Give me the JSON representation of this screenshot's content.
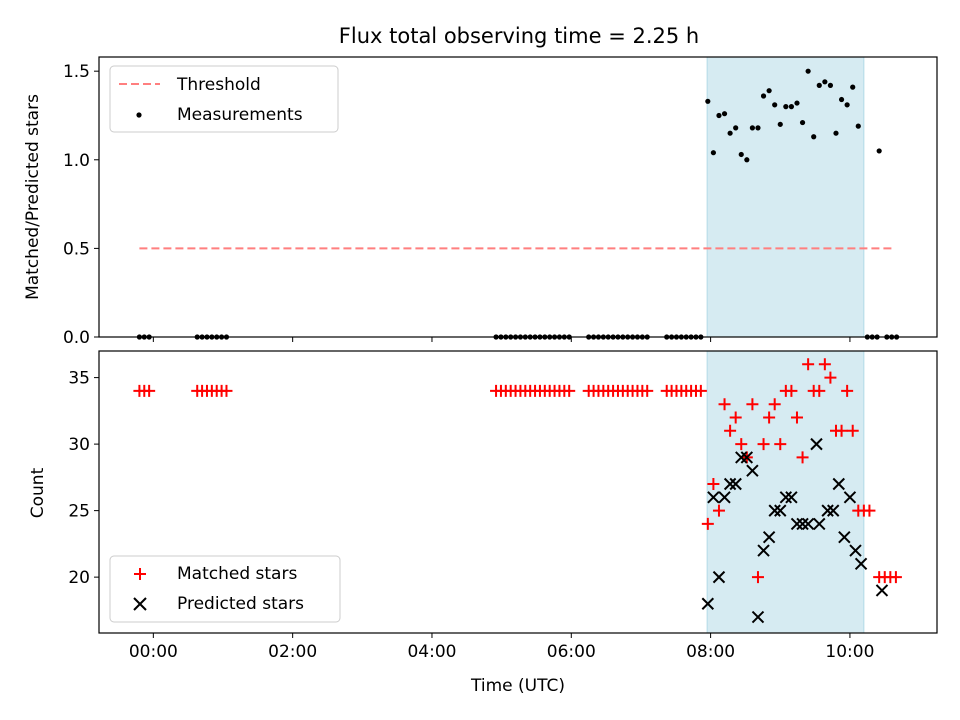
{
  "chart_data": {
    "type": "scatter",
    "title": "Flux total observing time = 2.25 h",
    "xlabel": "Time (UTC)",
    "x_ticks": [
      "00:00",
      "02:00",
      "04:00",
      "06:00",
      "08:00",
      "10:00"
    ],
    "x_tick_hours": [
      0,
      2,
      4,
      6,
      8,
      10
    ],
    "xlim_hours": [
      -0.78,
      11.25
    ],
    "shaded_interval_hours": [
      7.95,
      10.2
    ],
    "shade_color": "#add8e6",
    "panels": [
      {
        "ylabel": "Matched/Predicted stars",
        "ylim": [
          0,
          1.58
        ],
        "yticks": [
          0.0,
          0.5,
          1.0,
          1.5
        ],
        "ytick_labels": [
          "0.0",
          "0.5",
          "1.0",
          "1.5"
        ],
        "legend_position": "upper left",
        "threshold": {
          "name": "Threshold",
          "value": 0.5,
          "x_range_hours": [
            -0.2,
            10.65
          ],
          "color": "#ff7f7f"
        },
        "series": [
          {
            "name": "Measurements",
            "marker": "dot",
            "color": "#000000",
            "points": [
              [
                -0.2,
                0
              ],
              [
                -0.13,
                0
              ],
              [
                -0.06,
                0
              ],
              [
                0.63,
                0
              ],
              [
                0.7,
                0
              ],
              [
                0.77,
                0
              ],
              [
                0.84,
                0
              ],
              [
                0.91,
                0
              ],
              [
                0.98,
                0
              ],
              [
                1.05,
                0
              ],
              [
                4.92,
                0
              ],
              [
                4.99,
                0
              ],
              [
                5.06,
                0
              ],
              [
                5.13,
                0
              ],
              [
                5.2,
                0
              ],
              [
                5.27,
                0
              ],
              [
                5.34,
                0
              ],
              [
                5.41,
                0
              ],
              [
                5.48,
                0
              ],
              [
                5.55,
                0
              ],
              [
                5.62,
                0
              ],
              [
                5.69,
                0
              ],
              [
                5.76,
                0
              ],
              [
                5.83,
                0
              ],
              [
                5.9,
                0
              ],
              [
                5.97,
                0
              ],
              [
                6.25,
                0
              ],
              [
                6.32,
                0
              ],
              [
                6.39,
                0
              ],
              [
                6.46,
                0
              ],
              [
                6.53,
                0
              ],
              [
                6.6,
                0
              ],
              [
                6.67,
                0
              ],
              [
                6.74,
                0
              ],
              [
                6.81,
                0
              ],
              [
                6.88,
                0
              ],
              [
                6.95,
                0
              ],
              [
                7.02,
                0
              ],
              [
                7.09,
                0
              ],
              [
                7.37,
                0
              ],
              [
                7.44,
                0
              ],
              [
                7.51,
                0
              ],
              [
                7.58,
                0
              ],
              [
                7.65,
                0
              ],
              [
                7.72,
                0
              ],
              [
                7.79,
                0
              ],
              [
                7.86,
                0
              ],
              [
                7.96,
                1.33
              ],
              [
                8.04,
                1.04
              ],
              [
                8.12,
                1.25
              ],
              [
                8.2,
                1.26
              ],
              [
                8.28,
                1.15
              ],
              [
                8.36,
                1.18
              ],
              [
                8.44,
                1.03
              ],
              [
                8.52,
                1.0
              ],
              [
                8.6,
                1.18
              ],
              [
                8.68,
                1.18
              ],
              [
                8.76,
                1.36
              ],
              [
                8.84,
                1.39
              ],
              [
                8.92,
                1.31
              ],
              [
                9.0,
                1.2
              ],
              [
                9.08,
                1.3
              ],
              [
                9.16,
                1.3
              ],
              [
                9.24,
                1.32
              ],
              [
                9.32,
                1.21
              ],
              [
                9.4,
                1.5
              ],
              [
                9.48,
                1.13
              ],
              [
                9.56,
                1.42
              ],
              [
                9.64,
                1.44
              ],
              [
                9.72,
                1.42
              ],
              [
                9.8,
                1.15
              ],
              [
                9.88,
                1.34
              ],
              [
                9.96,
                1.31
              ],
              [
                10.04,
                1.41
              ],
              [
                10.12,
                1.19
              ],
              [
                10.25,
                0
              ],
              [
                10.32,
                0
              ],
              [
                10.39,
                0
              ],
              [
                10.42,
                1.05
              ],
              [
                10.53,
                0
              ],
              [
                10.6,
                0
              ],
              [
                10.67,
                0
              ]
            ]
          }
        ]
      },
      {
        "ylabel": "Count",
        "ylim": [
          15.8,
          37.0
        ],
        "yticks": [
          20,
          25,
          30,
          35
        ],
        "ytick_labels": [
          "20",
          "25",
          "30",
          "35"
        ],
        "legend_position": "lower left",
        "series": [
          {
            "name": "Matched stars",
            "marker": "plus",
            "color": "#ff0000",
            "points": [
              [
                -0.2,
                34
              ],
              [
                -0.13,
                34
              ],
              [
                -0.06,
                34
              ],
              [
                0.63,
                34
              ],
              [
                0.7,
                34
              ],
              [
                0.77,
                34
              ],
              [
                0.84,
                34
              ],
              [
                0.91,
                34
              ],
              [
                0.98,
                34
              ],
              [
                1.05,
                34
              ],
              [
                4.92,
                34
              ],
              [
                4.99,
                34
              ],
              [
                5.06,
                34
              ],
              [
                5.13,
                34
              ],
              [
                5.2,
                34
              ],
              [
                5.27,
                34
              ],
              [
                5.34,
                34
              ],
              [
                5.41,
                34
              ],
              [
                5.48,
                34
              ],
              [
                5.55,
                34
              ],
              [
                5.62,
                34
              ],
              [
                5.69,
                34
              ],
              [
                5.76,
                34
              ],
              [
                5.83,
                34
              ],
              [
                5.9,
                34
              ],
              [
                5.97,
                34
              ],
              [
                6.25,
                34
              ],
              [
                6.32,
                34
              ],
              [
                6.39,
                34
              ],
              [
                6.46,
                34
              ],
              [
                6.53,
                34
              ],
              [
                6.6,
                34
              ],
              [
                6.67,
                34
              ],
              [
                6.74,
                34
              ],
              [
                6.81,
                34
              ],
              [
                6.88,
                34
              ],
              [
                6.95,
                34
              ],
              [
                7.02,
                34
              ],
              [
                7.09,
                34
              ],
              [
                7.37,
                34
              ],
              [
                7.44,
                34
              ],
              [
                7.51,
                34
              ],
              [
                7.58,
                34
              ],
              [
                7.65,
                34
              ],
              [
                7.72,
                34
              ],
              [
                7.79,
                34
              ],
              [
                7.86,
                34
              ],
              [
                7.96,
                24
              ],
              [
                8.04,
                27
              ],
              [
                8.12,
                25
              ],
              [
                8.2,
                33
              ],
              [
                8.28,
                31
              ],
              [
                8.36,
                32
              ],
              [
                8.44,
                30
              ],
              [
                8.52,
                29
              ],
              [
                8.6,
                33
              ],
              [
                8.68,
                20
              ],
              [
                8.76,
                30
              ],
              [
                8.84,
                32
              ],
              [
                8.92,
                33
              ],
              [
                9.0,
                30
              ],
              [
                9.08,
                34
              ],
              [
                9.16,
                34
              ],
              [
                9.24,
                32
              ],
              [
                9.32,
                29
              ],
              [
                9.4,
                36
              ],
              [
                9.48,
                34
              ],
              [
                9.56,
                34
              ],
              [
                9.64,
                36
              ],
              [
                9.72,
                35
              ],
              [
                9.8,
                31
              ],
              [
                9.88,
                31
              ],
              [
                9.96,
                34
              ],
              [
                10.04,
                31
              ],
              [
                10.12,
                25
              ],
              [
                10.2,
                25
              ],
              [
                10.28,
                25
              ],
              [
                10.42,
                20
              ],
              [
                10.5,
                20
              ],
              [
                10.58,
                20
              ],
              [
                10.66,
                20
              ]
            ]
          },
          {
            "name": "Predicted stars",
            "marker": "x",
            "color": "#000000",
            "points": [
              [
                7.96,
                18
              ],
              [
                8.04,
                26
              ],
              [
                8.12,
                20
              ],
              [
                8.2,
                26
              ],
              [
                8.28,
                27
              ],
              [
                8.36,
                27
              ],
              [
                8.44,
                29
              ],
              [
                8.52,
                29
              ],
              [
                8.6,
                28
              ],
              [
                8.68,
                17
              ],
              [
                8.76,
                22
              ],
              [
                8.84,
                23
              ],
              [
                8.92,
                25
              ],
              [
                9.0,
                25
              ],
              [
                9.08,
                26
              ],
              [
                9.16,
                26
              ],
              [
                9.24,
                24
              ],
              [
                9.32,
                24
              ],
              [
                9.4,
                24
              ],
              [
                9.52,
                30
              ],
              [
                9.56,
                24
              ],
              [
                9.68,
                25
              ],
              [
                9.76,
                25
              ],
              [
                9.84,
                27
              ],
              [
                9.92,
                23
              ],
              [
                10.0,
                26
              ],
              [
                10.08,
                22
              ],
              [
                10.16,
                21
              ],
              [
                10.46,
                19
              ]
            ]
          }
        ]
      }
    ]
  }
}
